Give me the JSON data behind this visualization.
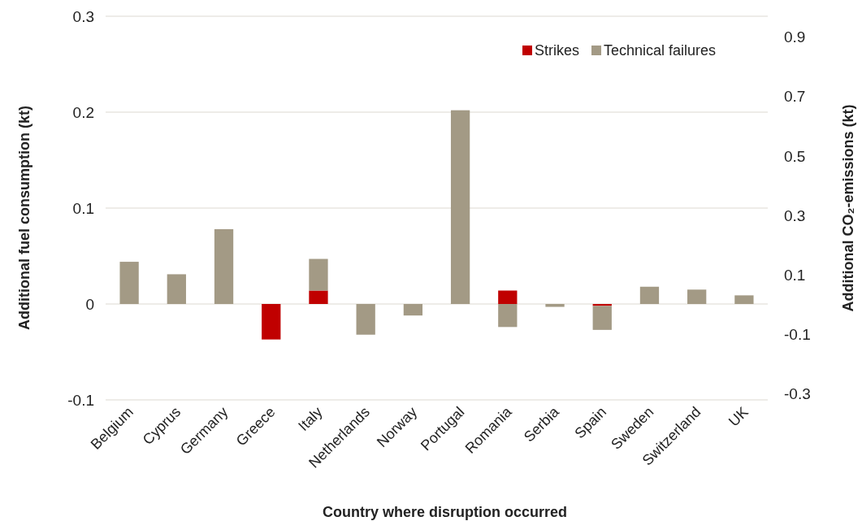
{
  "chart_data": {
    "type": "bar",
    "stacked": true,
    "xlabel": "Country where disruption occurred",
    "ylabel": "Additional fuel consumption (kt)",
    "y2label": "Additional CO₂-emissions (kt)",
    "categories": [
      "Belgium",
      "Cyprus",
      "Germany",
      "Greece",
      "Italy",
      "Netherlands",
      "Norway",
      "Portugal",
      "Romania",
      "Serbia",
      "Spain",
      "Sweden",
      "Switzerland",
      "UK"
    ],
    "series": [
      {
        "name": "Strikes",
        "color": "#c00000",
        "values": [
          0,
          0,
          0,
          -0.037,
          0.014,
          0,
          0,
          0,
          0.014,
          0,
          -0.002,
          0,
          0,
          0
        ]
      },
      {
        "name": "Technical failures",
        "color": "#a39a85",
        "values": [
          0.044,
          0.031,
          0.078,
          0,
          0.033,
          -0.032,
          -0.012,
          0.202,
          -0.024,
          -0.003,
          -0.025,
          0.018,
          0.015,
          0.009
        ]
      }
    ],
    "ylim": [
      -0.1,
      0.3
    ],
    "yticks": [
      -0.1,
      0,
      0.1,
      0.2,
      0.3
    ],
    "y2lim": [
      -0.32,
      0.97
    ],
    "y2ticks": [
      -0.3,
      -0.1,
      0.1,
      0.3,
      0.5,
      0.7,
      0.9
    ],
    "grid": "y",
    "legend": "top right"
  }
}
